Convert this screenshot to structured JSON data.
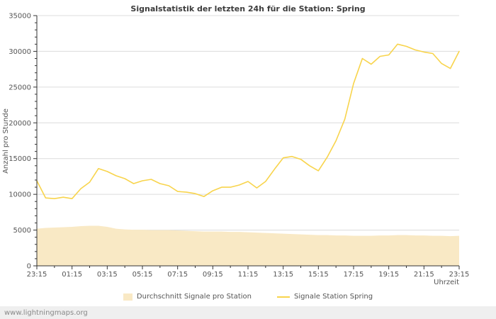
{
  "watermark": "www.lightningmaps.org",
  "legend": {
    "area_label": "Durchschnitt Signale pro Station",
    "line_label": "Signale Station Spring"
  },
  "chart_data": {
    "type": "line",
    "title": "Signalstatistik der letzten 24h für die Station: Spring",
    "xlabel": "Uhrzeit",
    "ylabel": "Anzahl pro Stunde",
    "ylim": [
      0,
      35000
    ],
    "ytick_step": 5000,
    "grid": "horizontal",
    "legend_position": "bottom",
    "x": [
      "23:15",
      "23:45",
      "00:15",
      "00:45",
      "01:15",
      "01:45",
      "02:15",
      "02:45",
      "03:15",
      "03:45",
      "04:15",
      "04:45",
      "05:15",
      "05:45",
      "06:15",
      "06:45",
      "07:15",
      "07:45",
      "08:15",
      "08:45",
      "09:15",
      "09:45",
      "10:15",
      "10:45",
      "11:15",
      "11:45",
      "12:15",
      "12:45",
      "13:15",
      "13:45",
      "14:15",
      "14:45",
      "15:15",
      "15:45",
      "16:15",
      "16:45",
      "17:15",
      "17:45",
      "18:15",
      "18:45",
      "19:15",
      "19:45",
      "20:15",
      "20:45",
      "21:15",
      "21:45",
      "22:15",
      "22:45",
      "23:15"
    ],
    "xticks": [
      "23:15",
      "01:15",
      "03:15",
      "05:15",
      "07:15",
      "09:15",
      "11:15",
      "13:15",
      "15:15",
      "17:15",
      "19:15",
      "21:15",
      "23:15"
    ],
    "yticks": [
      0,
      5000,
      10000,
      15000,
      20000,
      25000,
      30000,
      35000
    ],
    "series": [
      {
        "name": "Durchschnitt Signale pro Station",
        "type": "area",
        "values": [
          5200,
          5300,
          5350,
          5400,
          5450,
          5550,
          5600,
          5600,
          5450,
          5200,
          5100,
          5050,
          5050,
          5000,
          5000,
          5000,
          4950,
          4900,
          4850,
          4800,
          4800,
          4800,
          4750,
          4750,
          4700,
          4650,
          4600,
          4550,
          4500,
          4450,
          4400,
          4350,
          4300,
          4300,
          4250,
          4250,
          4200,
          4200,
          4200,
          4250,
          4250,
          4300,
          4300,
          4250,
          4250,
          4200,
          4200,
          4150,
          4200
        ]
      },
      {
        "name": "Signale Station Spring",
        "type": "line",
        "values": [
          11900,
          9500,
          9400,
          9600,
          9400,
          10800,
          11700,
          13600,
          13200,
          12600,
          12200,
          11500,
          11900,
          12100,
          11500,
          11200,
          10400,
          10300,
          10100,
          9700,
          10500,
          11000,
          11000,
          11300,
          11800,
          10900,
          11800,
          13500,
          15100,
          15300,
          14900,
          14000,
          13300,
          15200,
          17500,
          20500,
          25500,
          29000,
          28200,
          29300,
          29500,
          31000,
          30700,
          30200,
          29900,
          29700,
          28300,
          27600,
          30000
        ]
      }
    ],
    "colors": {
      "line": "#F8D44C",
      "area_fill": "#F9E9C5",
      "grid": "#DCDCDC",
      "axis": "#333333",
      "text": "#555555"
    }
  }
}
